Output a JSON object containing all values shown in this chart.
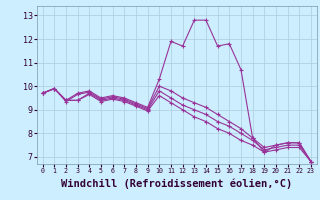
{
  "background_color": "#cceeff",
  "grid_color": "#aaccdd",
  "line_color": "#993399",
  "xlabel": "Windchill (Refroidissement éolien,°C)",
  "xlabel_fontsize": 7.5,
  "ylabel_ticks": [
    7,
    8,
    9,
    10,
    11,
    12,
    13
  ],
  "xtick_labels": [
    "0",
    "1",
    "2",
    "3",
    "4",
    "5",
    "6",
    "7",
    "8",
    "9",
    "10",
    "11",
    "12",
    "13",
    "14",
    "15",
    "16",
    "17",
    "18",
    "19",
    "20",
    "21",
    "22",
    "23"
  ],
  "xlim": [
    -0.5,
    23.5
  ],
  "ylim": [
    6.7,
    13.4
  ],
  "true_line": {
    "x": [
      0,
      1,
      2,
      3,
      4,
      5,
      6,
      7,
      8,
      9,
      10,
      11,
      12,
      13,
      14,
      15,
      16,
      17,
      18,
      19,
      20,
      21,
      22,
      23
    ],
    "y": [
      9.7,
      9.9,
      9.4,
      9.7,
      9.8,
      9.5,
      9.6,
      9.5,
      9.3,
      9.1,
      10.3,
      11.9,
      11.7,
      12.8,
      12.8,
      11.7,
      11.8,
      10.7,
      7.8,
      7.2,
      7.5,
      7.6,
      7.6,
      6.8
    ]
  },
  "line2": {
    "x": [
      0,
      1,
      2,
      3,
      4,
      5,
      6,
      7,
      8,
      9,
      10,
      11,
      12,
      13,
      14,
      15,
      16,
      17,
      18,
      19,
      20,
      21,
      22,
      23
    ],
    "y": [
      9.7,
      9.9,
      9.35,
      9.65,
      9.75,
      9.45,
      9.55,
      9.45,
      9.25,
      9.05,
      10.0,
      9.8,
      9.5,
      9.3,
      9.1,
      8.8,
      8.5,
      8.2,
      7.8,
      7.4,
      7.5,
      7.6,
      7.6,
      6.8
    ]
  },
  "line3": {
    "x": [
      0,
      1,
      2,
      3,
      4,
      5,
      6,
      7,
      8,
      9,
      10,
      11,
      12,
      13,
      14,
      15,
      16,
      17,
      18,
      19,
      20,
      21,
      22,
      23
    ],
    "y": [
      9.7,
      9.9,
      9.4,
      9.4,
      9.7,
      9.4,
      9.5,
      9.4,
      9.2,
      9.0,
      9.8,
      9.5,
      9.2,
      9.0,
      8.8,
      8.5,
      8.3,
      8.0,
      7.7,
      7.3,
      7.4,
      7.5,
      7.5,
      6.8
    ]
  },
  "line4": {
    "x": [
      0,
      1,
      2,
      3,
      4,
      5,
      6,
      7,
      8,
      9,
      10,
      11,
      12,
      13,
      14,
      15,
      16,
      17,
      18,
      19,
      20,
      21,
      22,
      23
    ],
    "y": [
      9.7,
      9.9,
      9.4,
      9.4,
      9.65,
      9.35,
      9.45,
      9.35,
      9.15,
      8.95,
      9.6,
      9.3,
      9.0,
      8.7,
      8.5,
      8.2,
      8.0,
      7.7,
      7.5,
      7.2,
      7.3,
      7.4,
      7.4,
      6.8
    ]
  }
}
